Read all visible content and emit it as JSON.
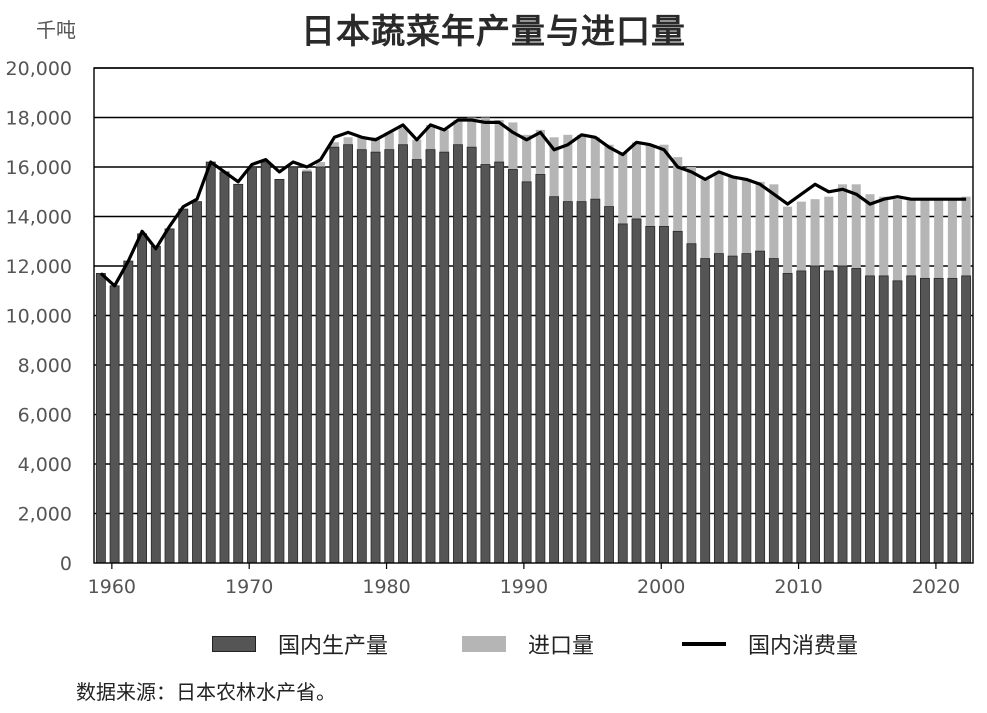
{
  "chart_data": {
    "type": "bar",
    "title": "日本蔬菜年产量与进口量",
    "unit": "千吨",
    "source": "数据来源：日本农林水产省。",
    "x_range": [
      1959,
      2022
    ],
    "x_ticks": [
      "1960",
      "1970",
      "1980",
      "1990",
      "2000",
      "2010",
      "2020"
    ],
    "x_tick_values": [
      1960,
      1970,
      1980,
      1990,
      2000,
      2010,
      2020
    ],
    "ylim": [
      0,
      20000
    ],
    "y_ticks": [
      "0",
      "2,000",
      "4,000",
      "6,000",
      "8,000",
      "10,000",
      "12,000",
      "14,000",
      "16,000",
      "18,000",
      "20,000"
    ],
    "y_tick_values": [
      0,
      2000,
      4000,
      6000,
      8000,
      10000,
      12000,
      14000,
      16000,
      18000,
      20000
    ],
    "stacked": true,
    "grid": "horizontal",
    "legend_position": "bottom",
    "colors": {
      "production": "#555555",
      "imports": "#b5b5b5",
      "consumption": "#000000"
    },
    "years": [
      1959,
      1960,
      1961,
      1962,
      1963,
      1964,
      1965,
      1966,
      1967,
      1968,
      1969,
      1970,
      1971,
      1972,
      1973,
      1974,
      1975,
      1976,
      1977,
      1978,
      1979,
      1980,
      1981,
      1982,
      1983,
      1984,
      1985,
      1986,
      1987,
      1988,
      1989,
      1990,
      1991,
      1992,
      1993,
      1994,
      1995,
      1996,
      1997,
      1998,
      1999,
      2000,
      2001,
      2002,
      2003,
      2004,
      2005,
      2006,
      2007,
      2008,
      2009,
      2010,
      2011,
      2012,
      2013,
      2014,
      2015,
      2016,
      2017,
      2018,
      2019,
      2020,
      2021,
      2022
    ],
    "series": [
      {
        "name": "国内生产量",
        "type": "bar",
        "values": [
          11700,
          11200,
          12200,
          13300,
          12800,
          13500,
          14300,
          14600,
          16200,
          15800,
          15300,
          16000,
          16200,
          15500,
          16000,
          15800,
          16000,
          16800,
          16900,
          16700,
          16600,
          16700,
          16900,
          16300,
          16700,
          16600,
          16900,
          16800,
          16100,
          16200,
          15900,
          15400,
          15700,
          14800,
          14600,
          14600,
          14700,
          14400,
          13700,
          13900,
          13600,
          13600,
          13400,
          12900,
          12300,
          12500,
          12400,
          12500,
          12600,
          12300,
          11700,
          11800,
          12000,
          11800,
          12000,
          11900,
          11600,
          11600,
          11400,
          11600,
          11500,
          11500,
          11500,
          11600
        ]
      },
      {
        "name": "进口量",
        "type": "bar",
        "values": [
          0,
          0,
          0,
          0,
          0,
          0,
          0,
          0,
          0,
          0,
          0,
          0,
          0,
          0,
          0,
          100,
          200,
          200,
          300,
          500,
          600,
          700,
          700,
          800,
          1000,
          900,
          1000,
          1200,
          1900,
          1700,
          1900,
          1900,
          1800,
          2400,
          2700,
          2700,
          2500,
          2500,
          2900,
          3100,
          3300,
          3300,
          3000,
          3100,
          3200,
          3300,
          3200,
          3000,
          2800,
          3000,
          2700,
          2800,
          2700,
          3000,
          3300,
          3400,
          3300,
          3200,
          3300,
          3100,
          3200,
          3200,
          3200,
          3200
        ]
      },
      {
        "name": "国内消费量",
        "type": "line",
        "values": [
          11700,
          11200,
          12200,
          13400,
          12700,
          13600,
          14400,
          14700,
          16200,
          15800,
          15400,
          16100,
          16300,
          15800,
          16200,
          16000,
          16300,
          17200,
          17400,
          17200,
          17100,
          17400,
          17700,
          17100,
          17700,
          17500,
          17900,
          17900,
          17800,
          17800,
          17400,
          17100,
          17400,
          16700,
          16900,
          17300,
          17200,
          16800,
          16500,
          17000,
          16900,
          16700,
          16000,
          15800,
          15500,
          15800,
          15600,
          15500,
          15300,
          14900,
          14500,
          14900,
          15300,
          15000,
          15100,
          14900,
          14500,
          14700,
          14800,
          14700,
          14700,
          14700,
          14700,
          14700
        ]
      }
    ]
  }
}
